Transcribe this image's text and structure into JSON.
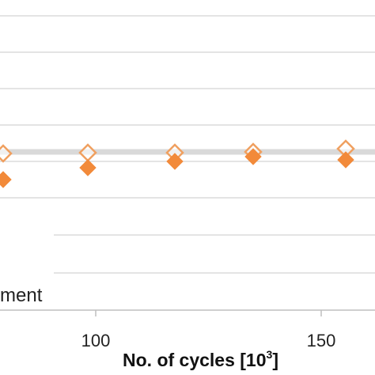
{
  "chart_data": {
    "type": "scatter",
    "xlabel": "No. of cycles [10",
    "xlabel_sup": "3",
    "xlabel_end": "]",
    "x_ticks": [
      {
        "value": 100,
        "label": "100"
      },
      {
        "value": 150,
        "label": "150"
      }
    ],
    "xlim": [
      72,
      174
    ],
    "ylim": [
      0,
      10
    ],
    "grid": true,
    "trend_line": {
      "color": "#d9d9d9",
      "y": 6.6
    },
    "series": [
      {
        "marker": "diamond-open",
        "color": "#f0a060",
        "points": [
          {
            "x": 72,
            "y": 6.6
          },
          {
            "x": 97,
            "y": 6.6
          },
          {
            "x": 117,
            "y": 6.6
          },
          {
            "x": 134,
            "y": 6.7
          },
          {
            "x": 155,
            "y": 6.8
          }
        ]
      },
      {
        "marker": "diamond-filled",
        "color": "#f28a3a",
        "points": [
          {
            "x": 72,
            "y": 5.8
          },
          {
            "x": 97,
            "y": 6.1
          },
          {
            "x": 117,
            "y": 6.3
          },
          {
            "x": 134,
            "y": 6.5
          },
          {
            "x": 155,
            "y": 6.4
          }
        ]
      }
    ],
    "legend_fragment": "ment"
  }
}
